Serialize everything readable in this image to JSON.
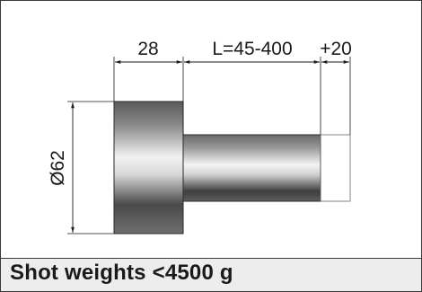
{
  "dimensions": {
    "head_width": "28",
    "shaft_length": "L=45-400",
    "extension": "+20",
    "diameter": "Ø62"
  },
  "caption": "Shot weights <4500 g"
}
